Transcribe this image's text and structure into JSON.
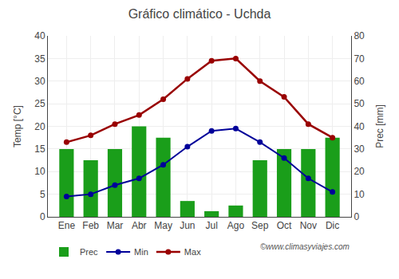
{
  "chart_data": {
    "type": "bar",
    "title": "Gráfico climático - Uchda",
    "categories": [
      "Ene",
      "Feb",
      "Mar",
      "Abr",
      "May",
      "Jun",
      "Jul",
      "Ago",
      "Sep",
      "Oct",
      "Nov",
      "Dic"
    ],
    "series": [
      {
        "name": "Prec",
        "type": "bar",
        "axis": "y2",
        "color": "#1a9e1a",
        "values": [
          30,
          25,
          30,
          40,
          35,
          7,
          2.5,
          5,
          25,
          30,
          30,
          35
        ]
      },
      {
        "name": "Min",
        "type": "line",
        "marker": "o",
        "color": "#000099",
        "values": [
          4.5,
          5.0,
          7.0,
          8.5,
          11.5,
          15.5,
          19.0,
          19.5,
          16.5,
          13.0,
          8.5,
          5.5
        ]
      },
      {
        "name": "Max",
        "type": "line",
        "marker": "o",
        "color": "#990000",
        "values": [
          16.5,
          18.0,
          20.5,
          22.5,
          26.0,
          30.5,
          34.5,
          35.0,
          30.0,
          26.5,
          20.5,
          17.5
        ]
      }
    ],
    "ylabel": "Temp [°C]",
    "y2label": "Prec [mm]",
    "ylim": [
      0,
      40
    ],
    "yticks": [
      0,
      5,
      10,
      15,
      20,
      25,
      30,
      35,
      40
    ],
    "y2lim": [
      0,
      80
    ],
    "y2ticks": [
      0,
      10,
      20,
      30,
      40,
      50,
      60,
      70,
      80
    ],
    "grid": true,
    "legend": "bottom",
    "annotations": [
      "©www.climasyviajes.com"
    ]
  }
}
